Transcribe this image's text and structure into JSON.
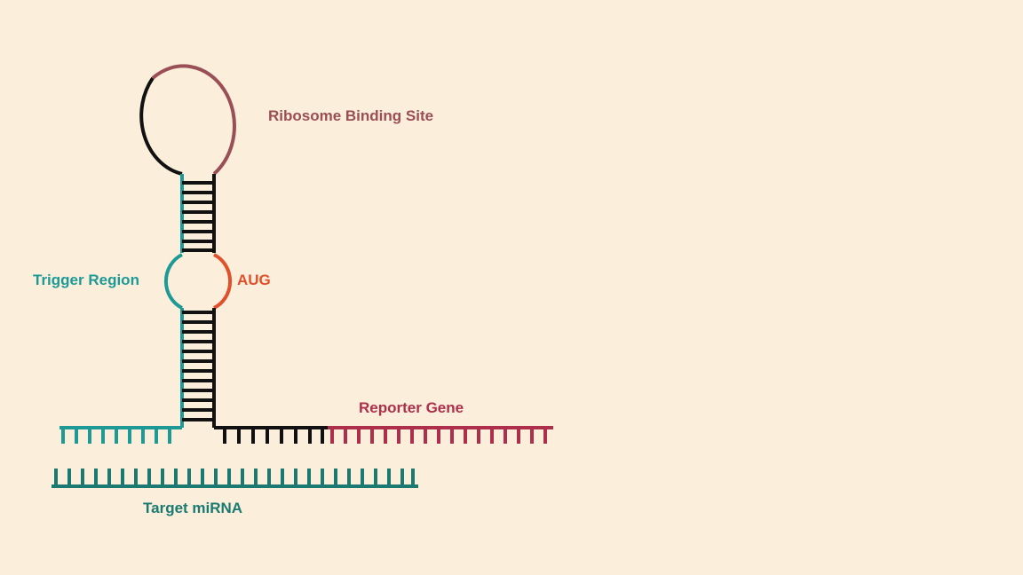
{
  "labels": {
    "ribosome_binding_site": "Ribosome Binding Site",
    "trigger_region": "Trigger Region",
    "aug": "AUG",
    "reporter_gene": "Reporter Gene",
    "target_mirna": "Target miRNA"
  },
  "colors": {
    "background": "#fbeedb",
    "ribosome_binding_site": "#9a4e56",
    "trigger_region": "#1e9a96",
    "aug": "#e0502a",
    "reporter_gene": "#ad2f4c",
    "target_mirna": "#1a7a72",
    "backbone": "#111111"
  }
}
